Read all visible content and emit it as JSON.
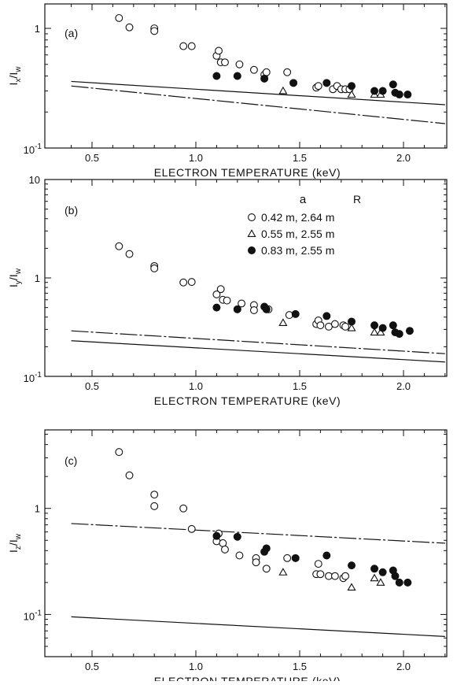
{
  "chart_data": [
    {
      "type": "scatter",
      "panel_label": "(a)",
      "ylabel_main": "I",
      "ylabel_sub": "x",
      "ylabel_den": "/I",
      "ylabel_den_sub": "w",
      "xlabel": "ELECTRON TEMPERATURE (keV)",
      "xlim": [
        0.4,
        2.2
      ],
      "ylim": [
        0.1,
        1.6
      ],
      "yscale": "log",
      "xticks": [
        "0.5",
        "1.0",
        "1.5",
        "2.0"
      ],
      "ytick_labels": [
        {
          "v": 1,
          "t": "1",
          "exp": ""
        },
        {
          "v": 0.1,
          "t": "10",
          "exp": "-1"
        }
      ],
      "series": [
        {
          "marker": "open-circle",
          "points": [
            [
              0.63,
              1.22
            ],
            [
              0.68,
              1.02
            ],
            [
              0.8,
              1.0
            ],
            [
              0.8,
              0.95
            ],
            [
              0.94,
              0.71
            ],
            [
              0.98,
              0.71
            ],
            [
              1.1,
              0.59
            ],
            [
              1.11,
              0.65
            ],
            [
              1.12,
              0.52
            ],
            [
              1.14,
              0.52
            ],
            [
              1.21,
              0.5
            ],
            [
              1.28,
              0.45
            ],
            [
              1.33,
              0.41
            ],
            [
              1.34,
              0.43
            ],
            [
              1.44,
              0.43
            ],
            [
              1.58,
              0.32
            ],
            [
              1.59,
              0.33
            ],
            [
              1.66,
              0.31
            ],
            [
              1.68,
              0.33
            ],
            [
              1.7,
              0.31
            ],
            [
              1.72,
              0.31
            ],
            [
              1.74,
              0.31
            ]
          ]
        },
        {
          "marker": "open-triangle",
          "points": [
            [
              1.42,
              0.3
            ],
            [
              1.75,
              0.28
            ],
            [
              1.86,
              0.28
            ],
            [
              1.89,
              0.28
            ]
          ]
        },
        {
          "marker": "filled-circle",
          "points": [
            [
              1.1,
              0.4
            ],
            [
              1.2,
              0.4
            ],
            [
              1.33,
              0.38
            ],
            [
              1.47,
              0.35
            ],
            [
              1.63,
              0.35
            ],
            [
              1.75,
              0.33
            ],
            [
              1.86,
              0.3
            ],
            [
              1.9,
              0.3
            ],
            [
              1.95,
              0.34
            ],
            [
              1.96,
              0.29
            ],
            [
              1.98,
              0.28
            ],
            [
              2.02,
              0.28
            ]
          ]
        }
      ],
      "lines": [
        {
          "style": "solid",
          "from": [
            0.4,
            0.36
          ],
          "to": [
            2.2,
            0.23
          ]
        },
        {
          "style": "dash-dot",
          "from": [
            0.4,
            0.33
          ],
          "to": [
            2.2,
            0.16
          ]
        }
      ]
    },
    {
      "type": "scatter",
      "panel_label": "(b)",
      "ylabel_main": "I",
      "ylabel_sub": "y",
      "ylabel_den": "/I",
      "ylabel_den_sub": "w",
      "xlabel": "ELECTRON TEMPERATURE (keV)",
      "xlim": [
        0.4,
        2.2
      ],
      "ylim": [
        0.1,
        10
      ],
      "yscale": "log",
      "xticks": [
        "0.5",
        "1.0",
        "1.5",
        "2.0"
      ],
      "ytick_labels": [
        {
          "v": 10,
          "t": "10",
          "exp": ""
        },
        {
          "v": 1,
          "t": "1",
          "exp": ""
        },
        {
          "v": 0.1,
          "t": "10",
          "exp": "-1"
        }
      ],
      "legend": {
        "header_a": "a",
        "header_r": "R",
        "entries": [
          {
            "marker": "open-circle",
            "label": "0.42 m,  2.64 m"
          },
          {
            "marker": "open-triangle",
            "label": "0.55 m,  2.55 m"
          },
          {
            "marker": "filled-circle",
            "label": "0.83 m,  2.55 m"
          }
        ]
      },
      "series": [
        {
          "marker": "open-circle",
          "points": [
            [
              0.63,
              2.1
            ],
            [
              0.68,
              1.75
            ],
            [
              0.8,
              1.32
            ],
            [
              0.8,
              1.25
            ],
            [
              0.94,
              0.9
            ],
            [
              0.98,
              0.91
            ],
            [
              1.1,
              0.68
            ],
            [
              1.12,
              0.77
            ],
            [
              1.13,
              0.6
            ],
            [
              1.15,
              0.59
            ],
            [
              1.22,
              0.55
            ],
            [
              1.28,
              0.53
            ],
            [
              1.28,
              0.47
            ],
            [
              1.35,
              0.48
            ],
            [
              1.45,
              0.42
            ],
            [
              1.58,
              0.34
            ],
            [
              1.59,
              0.37
            ],
            [
              1.6,
              0.33
            ],
            [
              1.64,
              0.32
            ],
            [
              1.67,
              0.34
            ],
            [
              1.71,
              0.33
            ],
            [
              1.72,
              0.32
            ]
          ]
        },
        {
          "marker": "open-triangle",
          "points": [
            [
              1.42,
              0.35
            ],
            [
              1.75,
              0.31
            ],
            [
              1.86,
              0.28
            ],
            [
              1.89,
              0.28
            ]
          ]
        },
        {
          "marker": "filled-circle",
          "points": [
            [
              1.1,
              0.5
            ],
            [
              1.2,
              0.48
            ],
            [
              1.33,
              0.51
            ],
            [
              1.34,
              0.48
            ],
            [
              1.48,
              0.43
            ],
            [
              1.63,
              0.41
            ],
            [
              1.75,
              0.36
            ],
            [
              1.86,
              0.33
            ],
            [
              1.9,
              0.31
            ],
            [
              1.95,
              0.33
            ],
            [
              1.96,
              0.28
            ],
            [
              1.98,
              0.27
            ],
            [
              2.03,
              0.29
            ]
          ]
        }
      ],
      "lines": [
        {
          "style": "dash-dot",
          "from": [
            0.4,
            0.29
          ],
          "to": [
            2.2,
            0.17
          ]
        },
        {
          "style": "solid",
          "from": [
            0.4,
            0.23
          ],
          "to": [
            2.2,
            0.14
          ]
        }
      ]
    },
    {
      "type": "scatter",
      "panel_label": "(c)",
      "ylabel_main": "I",
      "ylabel_sub": "z",
      "ylabel_den": "/I",
      "ylabel_den_sub": "w",
      "xlabel": "ELECTRON TEMPERATURE (keV)",
      "xlim": [
        0.4,
        2.2
      ],
      "ylim": [
        0.04,
        5.5
      ],
      "yscale": "log",
      "xticks": [
        "0.5",
        "1.0",
        "1.5",
        "2.0"
      ],
      "ytick_labels": [
        {
          "v": 1,
          "t": "1",
          "exp": ""
        },
        {
          "v": 0.1,
          "t": "10",
          "exp": "-1"
        }
      ],
      "series": [
        {
          "marker": "open-circle",
          "points": [
            [
              0.63,
              3.4
            ],
            [
              0.68,
              2.05
            ],
            [
              0.8,
              1.35
            ],
            [
              0.8,
              1.05
            ],
            [
              0.94,
              1.0
            ],
            [
              0.98,
              0.64
            ],
            [
              1.1,
              0.49
            ],
            [
              1.11,
              0.58
            ],
            [
              1.13,
              0.47
            ],
            [
              1.14,
              0.41
            ],
            [
              1.21,
              0.36
            ],
            [
              1.29,
              0.34
            ],
            [
              1.29,
              0.31
            ],
            [
              1.34,
              0.27
            ],
            [
              1.44,
              0.34
            ],
            [
              1.58,
              0.24
            ],
            [
              1.59,
              0.3
            ],
            [
              1.6,
              0.24
            ],
            [
              1.64,
              0.23
            ],
            [
              1.67,
              0.23
            ],
            [
              1.71,
              0.22
            ],
            [
              1.72,
              0.23
            ]
          ]
        },
        {
          "marker": "open-triangle",
          "points": [
            [
              1.42,
              0.25
            ],
            [
              1.75,
              0.18
            ],
            [
              1.86,
              0.22
            ],
            [
              1.89,
              0.2
            ]
          ]
        },
        {
          "marker": "filled-circle",
          "points": [
            [
              1.1,
              0.55
            ],
            [
              1.2,
              0.54
            ],
            [
              1.33,
              0.39
            ],
            [
              1.34,
              0.42
            ],
            [
              1.48,
              0.34
            ],
            [
              1.63,
              0.36
            ],
            [
              1.75,
              0.29
            ],
            [
              1.86,
              0.27
            ],
            [
              1.9,
              0.25
            ],
            [
              1.95,
              0.26
            ],
            [
              1.96,
              0.23
            ],
            [
              1.98,
              0.2
            ],
            [
              2.02,
              0.2
            ]
          ]
        }
      ],
      "lines": [
        {
          "style": "dash-dot",
          "from": [
            0.4,
            0.72
          ],
          "to": [
            2.2,
            0.47
          ]
        },
        {
          "style": "solid",
          "from": [
            0.4,
            0.095
          ],
          "to": [
            2.2,
            0.062
          ]
        }
      ]
    }
  ]
}
